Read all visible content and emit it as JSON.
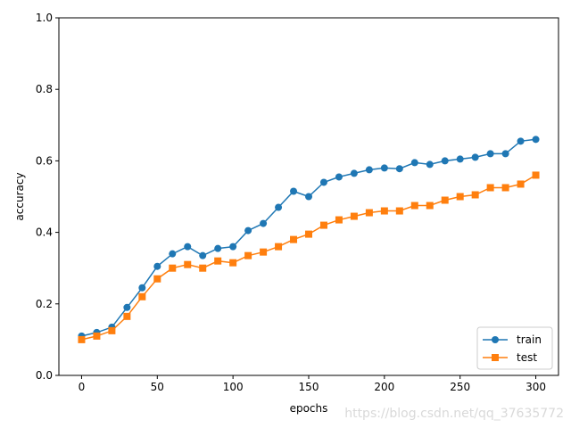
{
  "chart_data": {
    "type": "line",
    "xlabel": "epochs",
    "ylabel": "accuracy",
    "xlim": [
      -15,
      315
    ],
    "ylim": [
      0.0,
      1.0
    ],
    "xticks": [
      0,
      50,
      100,
      150,
      200,
      250,
      300
    ],
    "yticks": [
      0.0,
      0.2,
      0.4,
      0.6,
      0.8,
      1.0
    ],
    "xtick_labels": [
      "0",
      "50",
      "100",
      "150",
      "200",
      "250",
      "300"
    ],
    "ytick_labels": [
      "0.0",
      "0.2",
      "0.4",
      "0.6",
      "0.8",
      "1.0"
    ],
    "legend_position": "bottom-right",
    "series": [
      {
        "name": "train",
        "color": "#1f77b4",
        "marker": "circle",
        "x": [
          0,
          10,
          20,
          30,
          40,
          50,
          60,
          70,
          80,
          90,
          100,
          110,
          120,
          130,
          140,
          150,
          160,
          170,
          180,
          190,
          200,
          210,
          220,
          230,
          240,
          250,
          260,
          270,
          280,
          290,
          300
        ],
        "values": [
          0.11,
          0.12,
          0.135,
          0.19,
          0.245,
          0.305,
          0.34,
          0.36,
          0.335,
          0.355,
          0.36,
          0.405,
          0.425,
          0.47,
          0.515,
          0.5,
          0.54,
          0.555,
          0.565,
          0.575,
          0.58,
          0.578,
          0.595,
          0.59,
          0.6,
          0.605,
          0.61,
          0.62,
          0.62,
          0.655,
          0.66
        ]
      },
      {
        "name": "test",
        "color": "#ff7f0e",
        "marker": "square",
        "x": [
          0,
          10,
          20,
          30,
          40,
          50,
          60,
          70,
          80,
          90,
          100,
          110,
          120,
          130,
          140,
          150,
          160,
          170,
          180,
          190,
          200,
          210,
          220,
          230,
          240,
          250,
          260,
          270,
          280,
          290,
          300
        ],
        "values": [
          0.1,
          0.11,
          0.125,
          0.165,
          0.22,
          0.27,
          0.3,
          0.31,
          0.3,
          0.32,
          0.315,
          0.335,
          0.345,
          0.36,
          0.38,
          0.395,
          0.42,
          0.435,
          0.445,
          0.455,
          0.46,
          0.46,
          0.475,
          0.475,
          0.49,
          0.5,
          0.505,
          0.525,
          0.525,
          0.535,
          0.56
        ]
      }
    ]
  },
  "watermark": "https://blog.csdn.net/qq_37635772"
}
